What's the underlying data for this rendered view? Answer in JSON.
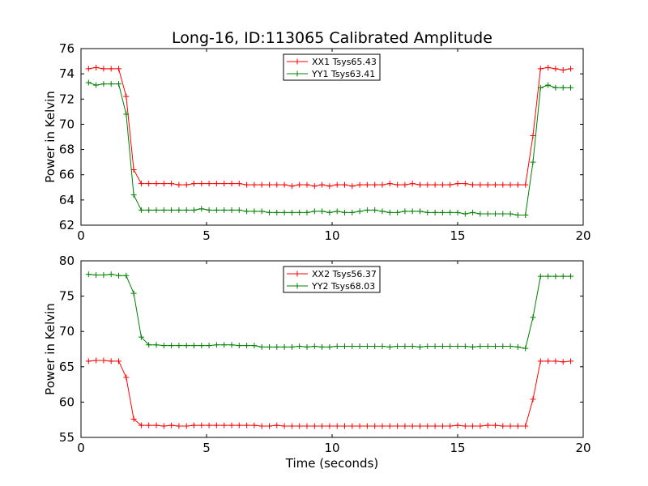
{
  "chart_data": [
    {
      "type": "line",
      "title": "Long-16, ID:113065 Calibrated Amplitude",
      "xlabel": "",
      "ylabel": "Power in Kelvin",
      "xlim": [
        0,
        20
      ],
      "ylim": [
        62,
        76
      ],
      "xticks": [
        "0",
        "5",
        "10",
        "15",
        "20"
      ],
      "yticks": [
        "62",
        "64",
        "66",
        "68",
        "70",
        "72",
        "74",
        "76"
      ],
      "legend_position": "top-center",
      "x": [
        0.3,
        0.6,
        0.9,
        1.2,
        1.5,
        1.8,
        2.1,
        2.4,
        2.7,
        3.0,
        3.3,
        3.6,
        3.9,
        4.2,
        4.5,
        4.8,
        5.1,
        5.4,
        5.7,
        6.0,
        6.3,
        6.6,
        6.9,
        7.2,
        7.5,
        7.8,
        8.1,
        8.4,
        8.7,
        9.0,
        9.3,
        9.6,
        9.9,
        10.2,
        10.5,
        10.8,
        11.1,
        11.4,
        11.7,
        12.0,
        12.3,
        12.6,
        12.9,
        13.2,
        13.5,
        13.8,
        14.1,
        14.4,
        14.7,
        15.0,
        15.3,
        15.6,
        15.9,
        16.2,
        16.5,
        16.8,
        17.1,
        17.4,
        17.7,
        18.0,
        18.3,
        18.6,
        18.9,
        19.2,
        19.5
      ],
      "series": [
        {
          "name": "XX1 Tsys65.43",
          "color": "#ff0000",
          "values": [
            74.4,
            74.5,
            74.4,
            74.4,
            74.4,
            72.2,
            66.4,
            65.3,
            65.3,
            65.3,
            65.3,
            65.3,
            65.2,
            65.2,
            65.3,
            65.3,
            65.3,
            65.3,
            65.3,
            65.3,
            65.3,
            65.2,
            65.2,
            65.2,
            65.2,
            65.2,
            65.2,
            65.1,
            65.2,
            65.2,
            65.1,
            65.2,
            65.1,
            65.2,
            65.2,
            65.1,
            65.2,
            65.2,
            65.2,
            65.2,
            65.3,
            65.2,
            65.2,
            65.3,
            65.2,
            65.2,
            65.2,
            65.2,
            65.2,
            65.3,
            65.3,
            65.2,
            65.2,
            65.2,
            65.2,
            65.2,
            65.2,
            65.2,
            65.2,
            69.1,
            74.4,
            74.5,
            74.4,
            74.3,
            74.4
          ]
        },
        {
          "name": "YY1 Tsys63.41",
          "color": "#008000",
          "values": [
            73.3,
            73.1,
            73.2,
            73.2,
            73.2,
            70.8,
            64.4,
            63.2,
            63.2,
            63.2,
            63.2,
            63.2,
            63.2,
            63.2,
            63.2,
            63.3,
            63.2,
            63.2,
            63.2,
            63.2,
            63.2,
            63.1,
            63.1,
            63.1,
            63.0,
            63.0,
            63.0,
            63.0,
            63.0,
            63.0,
            63.1,
            63.1,
            63.0,
            63.1,
            63.0,
            63.0,
            63.1,
            63.2,
            63.2,
            63.1,
            63.0,
            63.0,
            63.1,
            63.1,
            63.1,
            63.0,
            63.0,
            63.0,
            63.0,
            63.0,
            62.9,
            63.0,
            62.9,
            62.9,
            62.9,
            62.9,
            62.9,
            62.8,
            62.8,
            67.0,
            72.9,
            73.1,
            72.9,
            72.9,
            72.9
          ]
        }
      ]
    },
    {
      "type": "line",
      "title": "",
      "xlabel": "Time (seconds)",
      "ylabel": "Power in Kelvin",
      "xlim": [
        0,
        20
      ],
      "ylim": [
        55,
        80
      ],
      "xticks": [
        "0",
        "5",
        "10",
        "15",
        "20"
      ],
      "yticks": [
        "55",
        "60",
        "65",
        "70",
        "75",
        "80"
      ],
      "legend_position": "top-center",
      "x": [
        0.3,
        0.6,
        0.9,
        1.2,
        1.5,
        1.8,
        2.1,
        2.4,
        2.7,
        3.0,
        3.3,
        3.6,
        3.9,
        4.2,
        4.5,
        4.8,
        5.1,
        5.4,
        5.7,
        6.0,
        6.3,
        6.6,
        6.9,
        7.2,
        7.5,
        7.8,
        8.1,
        8.4,
        8.7,
        9.0,
        9.3,
        9.6,
        9.9,
        10.2,
        10.5,
        10.8,
        11.1,
        11.4,
        11.7,
        12.0,
        12.3,
        12.6,
        12.9,
        13.2,
        13.5,
        13.8,
        14.1,
        14.4,
        14.7,
        15.0,
        15.3,
        15.6,
        15.9,
        16.2,
        16.5,
        16.8,
        17.1,
        17.4,
        17.7,
        18.0,
        18.3,
        18.6,
        18.9,
        19.2,
        19.5
      ],
      "series": [
        {
          "name": "XX2 Tsys56.37",
          "color": "#ff0000",
          "values": [
            65.8,
            65.9,
            65.9,
            65.8,
            65.8,
            63.5,
            57.6,
            56.7,
            56.7,
            56.7,
            56.6,
            56.7,
            56.6,
            56.6,
            56.7,
            56.7,
            56.7,
            56.7,
            56.7,
            56.7,
            56.7,
            56.7,
            56.7,
            56.6,
            56.6,
            56.7,
            56.6,
            56.6,
            56.6,
            56.6,
            56.6,
            56.6,
            56.6,
            56.6,
            56.6,
            56.6,
            56.6,
            56.6,
            56.6,
            56.6,
            56.6,
            56.6,
            56.6,
            56.6,
            56.6,
            56.6,
            56.6,
            56.6,
            56.6,
            56.7,
            56.6,
            56.6,
            56.6,
            56.7,
            56.7,
            56.6,
            56.6,
            56.6,
            56.6,
            60.4,
            65.8,
            65.8,
            65.8,
            65.7,
            65.8
          ]
        },
        {
          "name": "YY2 Tsys68.03",
          "color": "#008000",
          "values": [
            78.1,
            78.0,
            78.0,
            78.1,
            77.9,
            77.9,
            75.4,
            69.2,
            68.1,
            68.1,
            68.0,
            68.0,
            68.0,
            68.0,
            68.0,
            68.0,
            68.0,
            68.1,
            68.1,
            68.1,
            68.0,
            68.0,
            68.0,
            67.8,
            67.8,
            67.8,
            67.8,
            67.8,
            67.9,
            67.8,
            67.9,
            67.8,
            67.8,
            67.9,
            67.9,
            67.9,
            67.9,
            67.9,
            67.9,
            67.9,
            67.8,
            67.9,
            67.9,
            67.9,
            67.8,
            67.9,
            67.9,
            67.9,
            67.9,
            67.9,
            67.9,
            67.8,
            67.9,
            67.9,
            67.9,
            67.9,
            67.9,
            67.8,
            67.6,
            72.0,
            77.8,
            77.8,
            77.8,
            77.8,
            77.8
          ]
        }
      ]
    }
  ]
}
